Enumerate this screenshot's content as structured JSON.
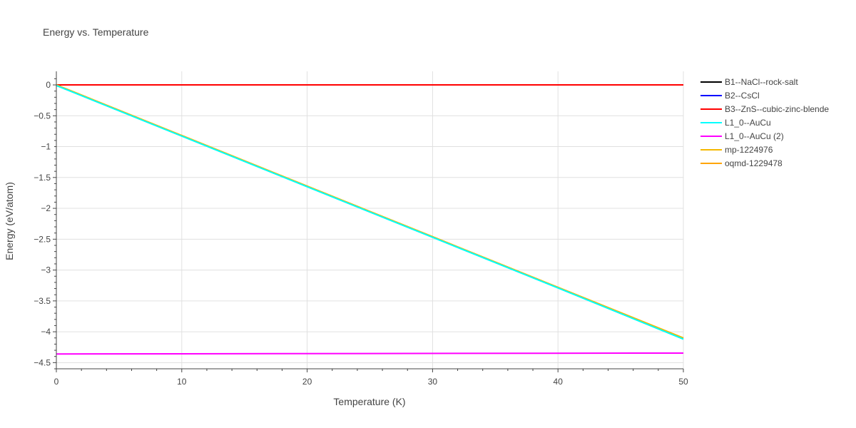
{
  "chart_data": {
    "type": "line",
    "title": "Energy vs. Temperature",
    "xlabel": "Temperature (K)",
    "ylabel": "Energy (eV/atom)",
    "xlim": [
      0,
      50
    ],
    "ylim": [
      -4.6,
      0.22
    ],
    "x_ticks": [
      0,
      10,
      20,
      30,
      40,
      50
    ],
    "y_ticks": [
      0,
      -0.5,
      -1,
      -1.5,
      -2,
      -2.5,
      -3,
      -3.5,
      -4,
      -4.5
    ],
    "x_tick_labels": [
      "0",
      "10",
      "20",
      "30",
      "40",
      "50"
    ],
    "y_tick_labels": [
      "0",
      "−0.5",
      "−1",
      "−1.5",
      "−2",
      "−2.5",
      "−3",
      "−3.5",
      "−4",
      "−4.5"
    ],
    "grid": true,
    "legend_position": "right",
    "series": [
      {
        "name": "B1--NaCl--rock-salt",
        "color": "#000000",
        "x": [
          0,
          50
        ],
        "y": [
          0,
          0
        ]
      },
      {
        "name": "B2--CsCl",
        "color": "#0000ff",
        "x": [
          0,
          50
        ],
        "y": [
          0,
          0
        ]
      },
      {
        "name": "B3--ZnS--cubic-zinc-blende",
        "color": "#ff0000",
        "x": [
          0,
          50
        ],
        "y": [
          0,
          0
        ]
      },
      {
        "name": "L1_0--AuCu",
        "color": "#00ffff",
        "x": [
          0,
          10,
          20,
          30,
          40,
          50
        ],
        "y": [
          -0.01,
          -0.83,
          -1.65,
          -2.47,
          -3.29,
          -4.12
        ]
      },
      {
        "name": "L1_0--AuCu (2)",
        "color": "#ff00ff",
        "x": [
          0,
          50
        ],
        "y": [
          -4.36,
          -4.345
        ]
      },
      {
        "name": "mp-1224976",
        "color": "#f5b800",
        "x": [
          0,
          10,
          20,
          30,
          40,
          50
        ],
        "y": [
          0,
          -0.82,
          -1.64,
          -2.46,
          -3.28,
          -4.1
        ]
      },
      {
        "name": "oqmd-1229478",
        "color": "#ffa500",
        "x": [
          0,
          10,
          20,
          30,
          40,
          50
        ],
        "y": [
          0,
          -0.82,
          -1.64,
          -2.46,
          -3.28,
          -4.1
        ]
      }
    ],
    "draw_order": [
      0,
      1,
      2,
      6,
      5,
      3,
      4
    ]
  }
}
